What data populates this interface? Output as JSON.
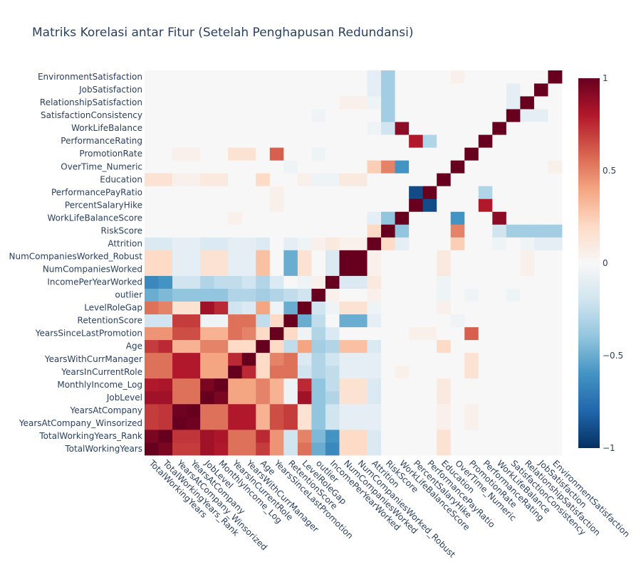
{
  "chart_data": {
    "type": "heatmap",
    "title": "Matriks Korelasi antar Fitur (Setelah Penghapusan Redundansi)",
    "features": [
      "TotalWorkingYears",
      "TotalWorkingYears_Rank",
      "YearsAtCompany_Winsorized",
      "YearsAtCompany",
      "JobLevel",
      "MonthlyIncome_Log",
      "YearsInCurrentRole",
      "YearsWithCurrManager",
      "Age",
      "YearsSinceLastPromotion",
      "RetentionScore",
      "LevelRoleGap",
      "outlier",
      "IncomePerYearWorked",
      "NumCompaniesWorked",
      "NumCompaniesWorked_Robust",
      "Attrition",
      "RiskScore",
      "WorkLifeBalanceScore",
      "PercentSalaryHike",
      "PerformancePayRatio",
      "Education",
      "OverTime_Numeric",
      "PromotionRate",
      "PerformanceRating",
      "WorkLifeBalance",
      "SatisfactionConsistency",
      "RelationshipSatisfaction",
      "JobSatisfaction",
      "EnvironmentSatisfaction"
    ],
    "zrange": [
      -1,
      1
    ],
    "colorbar_ticks": [
      "1",
      "0.5",
      "0",
      "−0.5",
      "−1"
    ],
    "colorbar_tick_values": [
      1,
      0.5,
      0,
      -0.5,
      -1
    ],
    "colorscale": "RdBu",
    "colorscale_stops": [
      [
        0.0,
        "#053061"
      ],
      [
        0.1,
        "#2166ac"
      ],
      [
        0.2,
        "#4393c3"
      ],
      [
        0.3,
        "#92c5de"
      ],
      [
        0.4,
        "#d1e5f0"
      ],
      [
        0.5,
        "#f7f7f7"
      ],
      [
        0.6,
        "#fddbc7"
      ],
      [
        0.7,
        "#f4a582"
      ],
      [
        0.8,
        "#d6604d"
      ],
      [
        0.9,
        "#b2182b"
      ],
      [
        1.0,
        "#67001f"
      ]
    ],
    "z": [
      [
        1,
        0.95,
        0.7,
        0.7,
        0.85,
        0.8,
        0.55,
        0.55,
        0.7,
        0.45,
        -0.2,
        0.55,
        -0.5,
        -0.65,
        0.2,
        0.2,
        -0.15,
        0,
        0,
        0,
        0,
        0.15,
        0,
        0,
        0,
        0,
        0,
        0,
        0,
        0
      ],
      [
        0.95,
        1,
        0.72,
        0.72,
        0.85,
        0.82,
        0.55,
        0.55,
        0.75,
        0.45,
        -0.2,
        0.5,
        -0.45,
        -0.6,
        0.2,
        0.2,
        -0.15,
        0,
        0,
        0,
        0,
        0.15,
        0,
        0,
        0,
        0,
        0,
        0,
        0,
        0
      ],
      [
        0.7,
        0.72,
        1,
        0.98,
        0.55,
        0.55,
        0.8,
        0.8,
        0.35,
        0.65,
        0.7,
        0.15,
        -0.4,
        -0.2,
        -0.1,
        -0.1,
        -0.1,
        0,
        0,
        0,
        0,
        0.05,
        0,
        0.05,
        0,
        0,
        0,
        0,
        0,
        0
      ],
      [
        0.7,
        0.72,
        0.98,
        1,
        0.55,
        0.55,
        0.8,
        0.8,
        0.35,
        0.65,
        0.7,
        0.15,
        -0.4,
        -0.2,
        -0.1,
        -0.1,
        -0.1,
        0,
        0,
        0,
        0,
        0.05,
        0,
        0.05,
        0,
        0,
        0,
        0,
        0,
        0
      ],
      [
        0.85,
        0.85,
        0.55,
        0.55,
        1,
        0.95,
        0.4,
        0.4,
        0.5,
        0.35,
        -0.05,
        0.85,
        -0.4,
        -0.3,
        0.15,
        0.15,
        -0.15,
        0,
        0,
        0,
        0,
        0.1,
        0,
        0,
        0,
        0,
        0,
        0,
        0,
        0
      ],
      [
        0.8,
        0.82,
        0.55,
        0.55,
        0.95,
        1,
        0.4,
        0.4,
        0.5,
        0.35,
        -0.05,
        0.75,
        -0.4,
        -0.25,
        0.15,
        0.15,
        -0.15,
        0,
        0,
        0,
        0,
        0.1,
        0,
        0,
        0,
        0,
        0,
        0,
        0,
        0
      ],
      [
        0.55,
        0.55,
        0.8,
        0.8,
        0.4,
        0.4,
        1,
        0.75,
        0.2,
        0.55,
        0.55,
        -0.2,
        -0.3,
        -0.25,
        -0.1,
        -0.1,
        -0.1,
        0,
        0.05,
        0,
        0,
        0,
        0,
        0.15,
        0,
        0,
        0,
        0,
        0,
        0
      ],
      [
        0.55,
        0.55,
        0.8,
        0.8,
        0.4,
        0.4,
        0.75,
        1,
        0.2,
        0.5,
        0.55,
        -0.15,
        -0.3,
        -0.2,
        -0.1,
        -0.1,
        -0.1,
        0,
        0,
        0,
        0,
        0,
        0,
        0.15,
        0,
        0,
        0,
        0,
        0,
        0
      ],
      [
        0.7,
        0.75,
        0.35,
        0.35,
        0.5,
        0.5,
        0.2,
        0.2,
        1,
        0.2,
        -0.25,
        0.4,
        -0.35,
        -0.3,
        0.3,
        0.3,
        -0.15,
        0,
        0,
        0,
        0,
        0.2,
        0,
        0,
        0,
        0,
        0,
        0,
        0,
        0
      ],
      [
        0.45,
        0.45,
        0.65,
        0.65,
        0.35,
        0.35,
        0.55,
        0.5,
        0.2,
        1,
        0.2,
        -0.05,
        -0.3,
        -0.15,
        0,
        0,
        0,
        0,
        0,
        0.05,
        0.05,
        0,
        0,
        0.6,
        0,
        0,
        0,
        0,
        0,
        0
      ],
      [
        -0.2,
        -0.2,
        0.7,
        0.7,
        -0.05,
        -0.05,
        0.55,
        0.55,
        -0.25,
        0.2,
        1,
        -0.5,
        -0.25,
        0,
        -0.5,
        -0.5,
        -0.1,
        0,
        0,
        0,
        0,
        0,
        -0.05,
        0,
        0,
        0,
        0,
        0,
        0,
        0
      ],
      [
        0.55,
        0.5,
        0.15,
        0.15,
        0.85,
        0.75,
        -0.2,
        -0.15,
        0.4,
        -0.05,
        -0.5,
        1,
        -0.2,
        -0.05,
        0.15,
        0.15,
        -0.05,
        0,
        0,
        0,
        0,
        0.05,
        0,
        0,
        0,
        0,
        0,
        0,
        0,
        0
      ],
      [
        -0.5,
        -0.45,
        -0.4,
        -0.4,
        -0.4,
        -0.4,
        -0.3,
        -0.3,
        -0.35,
        -0.3,
        -0.25,
        -0.2,
        1,
        0.05,
        0,
        0,
        0.05,
        0,
        0,
        0,
        0,
        -0.05,
        0,
        -0.05,
        0,
        0,
        -0.05,
        0,
        0,
        0
      ],
      [
        -0.65,
        -0.6,
        -0.2,
        -0.2,
        -0.3,
        -0.25,
        -0.25,
        -0.2,
        -0.3,
        -0.15,
        0,
        -0.05,
        0.05,
        1,
        -0.15,
        -0.15,
        0.1,
        0,
        0,
        0,
        0,
        -0.05,
        0,
        0,
        0,
        0,
        0,
        0,
        0,
        0
      ],
      [
        0.2,
        0.2,
        -0.1,
        -0.1,
        0.15,
        0.15,
        -0.1,
        -0.1,
        0.3,
        0,
        -0.5,
        0.15,
        0,
        -0.15,
        1,
        1,
        0.05,
        0,
        0,
        0,
        0,
        0.1,
        0,
        0,
        0,
        0,
        0,
        0.05,
        0,
        0
      ],
      [
        0.2,
        0.2,
        -0.1,
        -0.1,
        0.15,
        0.15,
        -0.1,
        -0.1,
        0.3,
        0,
        -0.5,
        0.15,
        0,
        -0.15,
        1,
        1,
        0.05,
        0,
        0,
        0,
        0,
        0.1,
        0,
        0,
        0,
        0,
        0,
        0.05,
        0,
        0
      ],
      [
        -0.15,
        -0.15,
        -0.1,
        -0.1,
        -0.15,
        -0.15,
        -0.1,
        -0.1,
        -0.15,
        0,
        -0.1,
        -0.05,
        0.05,
        0.1,
        0.05,
        0.05,
        1,
        0.2,
        -0.1,
        0,
        0,
        0,
        0.25,
        0,
        0,
        -0.05,
        0,
        -0.05,
        -0.1,
        -0.1
      ],
      [
        0,
        0,
        0,
        0,
        0,
        0,
        0,
        0,
        0,
        0,
        0,
        0,
        0,
        0,
        0,
        0,
        0.2,
        1,
        -0.4,
        0,
        0,
        0,
        0.5,
        0,
        0,
        -0.2,
        -0.35,
        -0.35,
        -0.35,
        -0.35
      ],
      [
        0,
        0,
        0,
        0,
        0,
        0,
        0.05,
        0,
        0,
        0,
        0,
        0,
        0,
        0,
        0,
        0,
        -0.1,
        -0.4,
        1,
        0,
        0,
        0,
        -0.6,
        0,
        0,
        0.9,
        0,
        0,
        0,
        0
      ],
      [
        0,
        0,
        0,
        0,
        0,
        0,
        0,
        0,
        0,
        0.05,
        0,
        0,
        0,
        0,
        0,
        0,
        0,
        0,
        0,
        1,
        -0.9,
        0,
        0,
        0,
        0.8,
        0,
        0,
        0,
        0,
        0
      ],
      [
        0,
        0,
        0,
        0,
        0,
        0,
        0,
        0,
        0,
        0.05,
        0,
        0,
        0,
        0,
        0,
        0,
        0,
        0,
        0,
        -0.9,
        1,
        0,
        0,
        0,
        -0.3,
        0,
        0,
        0,
        0,
        0
      ],
      [
        0.15,
        0.15,
        0.05,
        0.05,
        0.1,
        0.1,
        0,
        0,
        0.2,
        0,
        0,
        0.05,
        -0.05,
        -0.05,
        0.1,
        0.1,
        0,
        0,
        0,
        0,
        0,
        1,
        0,
        0,
        0,
        0,
        0,
        0,
        0,
        0
      ],
      [
        0,
        0,
        0,
        0,
        0,
        0,
        0,
        0,
        0,
        0,
        -0.05,
        0,
        0,
        0,
        0,
        0,
        0.25,
        0.5,
        -0.6,
        0,
        0,
        0,
        1,
        0,
        0,
        0,
        0,
        0,
        0,
        0.05
      ],
      [
        0,
        0,
        0.05,
        0.05,
        0,
        0,
        0.15,
        0.15,
        0,
        0.6,
        0,
        0,
        -0.05,
        0,
        0,
        0,
        0,
        0,
        0,
        0,
        0,
        0,
        0,
        1,
        0,
        0,
        0,
        0,
        0,
        0
      ],
      [
        0,
        0,
        0,
        0,
        0,
        0,
        0,
        0,
        0,
        0,
        0,
        0,
        0,
        0,
        0,
        0,
        0,
        0,
        0,
        0.8,
        -0.3,
        0,
        0,
        0,
        1,
        0,
        0,
        0,
        0,
        0
      ],
      [
        0,
        0,
        0,
        0,
        0,
        0,
        0,
        0,
        0,
        0,
        0,
        0,
        0,
        0,
        0,
        0,
        -0.05,
        -0.2,
        0.9,
        0,
        0,
        0,
        0,
        0,
        0,
        1,
        0,
        0,
        0,
        0
      ],
      [
        0,
        0,
        0,
        0,
        0,
        0,
        0,
        0,
        0,
        0,
        0,
        0,
        -0.05,
        0,
        0,
        0,
        0,
        -0.35,
        0,
        0,
        0,
        0,
        0,
        0,
        0,
        0,
        1,
        -0.1,
        -0.1,
        0
      ],
      [
        0,
        0,
        0,
        0,
        0,
        0,
        0,
        0,
        0,
        0,
        0,
        0,
        0,
        0,
        0.05,
        0.05,
        -0.05,
        -0.35,
        0,
        0,
        0,
        0,
        0,
        0,
        0,
        0,
        -0.1,
        1,
        0,
        0
      ],
      [
        0,
        0,
        0,
        0,
        0,
        0,
        0,
        0,
        0,
        0,
        0,
        0,
        0,
        0,
        0,
        0,
        -0.1,
        -0.35,
        0,
        0,
        0,
        0,
        0,
        0,
        0,
        0,
        -0.1,
        0,
        1,
        0
      ],
      [
        0,
        0,
        0,
        0,
        0,
        0,
        0,
        0,
        0,
        0,
        0,
        0,
        0,
        0,
        0,
        0,
        -0.1,
        -0.35,
        0,
        0,
        0,
        0,
        0.05,
        0,
        0,
        0,
        0,
        0,
        0,
        1
      ]
    ]
  }
}
